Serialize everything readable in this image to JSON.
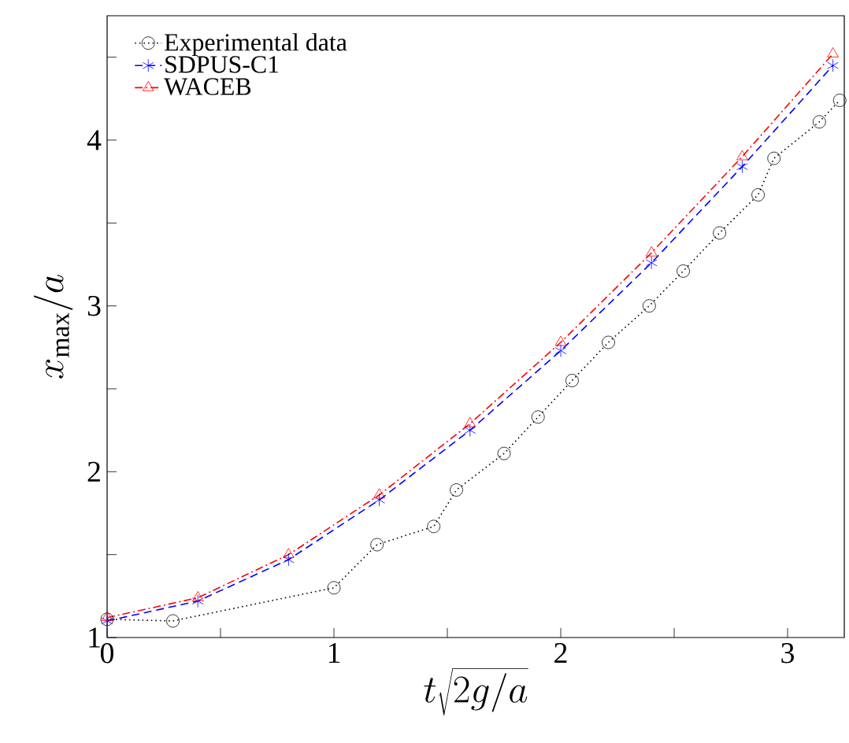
{
  "chart_data": {
    "type": "line",
    "xlabel": "t\\sqrt{2g/a}",
    "ylabel": "x_{\\max}/a",
    "xlim": [
      0,
      3.25
    ],
    "ylim": [
      1,
      4.75
    ],
    "xticks": [
      0,
      {
        "value": 0.5,
        "label": null
      },
      1,
      {
        "value": 1.5,
        "label": null
      },
      2,
      {
        "value": 2.5,
        "label": null
      },
      3
    ],
    "yticks": [
      1,
      {
        "value": 1.5,
        "label": null
      },
      2,
      {
        "value": 2.5,
        "label": null
      },
      3,
      {
        "value": 3.5,
        "label": null
      },
      4,
      {
        "value": 4.5,
        "label": null
      }
    ],
    "legend": "top left",
    "grid": false,
    "series": [
      {
        "name": "Experimental data",
        "color": "#000000",
        "marker": "circle",
        "line_style": "dotted",
        "x": [
          0,
          0.29,
          1.0,
          1.19,
          1.44,
          1.54,
          1.75,
          1.9,
          2.05,
          2.21,
          2.39,
          2.54,
          2.7,
          2.87,
          2.94,
          3.14,
          3.23
        ],
        "values": [
          1.11,
          1.1,
          1.3,
          1.56,
          1.67,
          1.89,
          2.11,
          2.33,
          2.55,
          2.78,
          3.0,
          3.21,
          3.44,
          3.67,
          3.89,
          4.11,
          4.24
        ]
      },
      {
        "name": "SDPUS-C1",
        "color": "#0000ff",
        "marker": "cross",
        "line_style": "dashed",
        "x": [
          0,
          0.4,
          0.8,
          1.2,
          1.6,
          2.0,
          2.4,
          2.8,
          3.2
        ],
        "values": [
          1.1,
          1.22,
          1.47,
          1.83,
          2.25,
          2.73,
          3.26,
          3.84,
          4.45
        ]
      },
      {
        "name": "WACEB",
        "color": "#ff0000",
        "marker": "triangle",
        "line_style": "dashdot",
        "x": [
          0,
          0.4,
          0.8,
          1.2,
          1.6,
          2.0,
          2.4,
          2.8,
          3.2
        ],
        "values": [
          1.12,
          1.24,
          1.5,
          1.86,
          2.29,
          2.78,
          3.32,
          3.9,
          4.52
        ]
      }
    ]
  }
}
